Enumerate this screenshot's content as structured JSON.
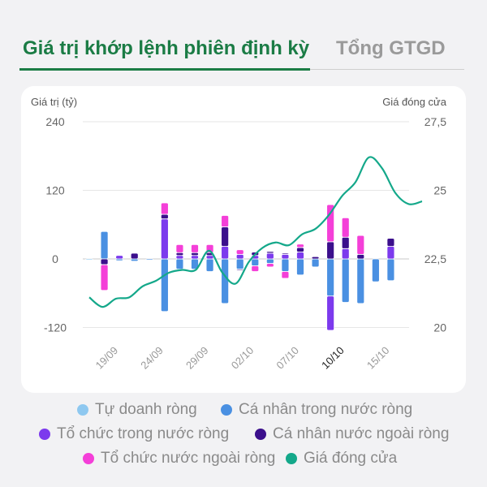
{
  "tabs": {
    "active_label": "Giá trị khớp lệnh phiên định kỳ",
    "inactive_label": "Tổng GTGD"
  },
  "chart_data": {
    "type": "bar",
    "y_left_label": "Giá trị (tỷ)",
    "y_right_label": "Giá đóng cửa",
    "y_left_ticks": [
      "240",
      "120",
      "0",
      "-120"
    ],
    "y_right_ticks": [
      "27,5",
      "25",
      "22,5",
      "20"
    ],
    "ylim_left": [
      -120,
      240
    ],
    "ylim_right": [
      20,
      27.5
    ],
    "x_tick_labels": [
      "19/09",
      "24/09",
      "29/09",
      "02/10",
      "07/10",
      "10/10",
      "15/10"
    ],
    "x_tick_highlight": "10/10",
    "stacked": true,
    "grid": true,
    "legend_position": "bottom",
    "bar_count": 22,
    "bar_tick_indices": [
      1,
      4,
      7,
      10,
      13,
      16,
      19
    ],
    "series": [
      {
        "name": "Tự doanh ròng",
        "color": "#8ec8f0",
        "values": [
          -2,
          0,
          0,
          0,
          0,
          0,
          0,
          0,
          0,
          0,
          0,
          0,
          0,
          0,
          0,
          0,
          0,
          0,
          0,
          0,
          0,
          0
        ]
      },
      {
        "name": "Cá nhân trong nước ròng",
        "color": "#4a90e2",
        "values": [
          0,
          48,
          -3,
          -4,
          -2,
          -92,
          -18,
          -18,
          -22,
          -78,
          -18,
          -12,
          -8,
          -22,
          -28,
          -14,
          -65,
          -76,
          -78,
          -40,
          -38,
          0
        ]
      },
      {
        "name": "Tổ chức trong nước ròng",
        "color": "#7c3aed",
        "values": [
          0,
          0,
          6,
          0,
          0,
          70,
          6,
          6,
          6,
          22,
          8,
          6,
          10,
          8,
          12,
          0,
          -60,
          18,
          0,
          0,
          22,
          0
        ]
      },
      {
        "name": "Cá nhân nước ngoài ròng",
        "color": "#3b0f8c",
        "values": [
          0,
          -10,
          0,
          10,
          0,
          8,
          5,
          5,
          5,
          34,
          -2,
          6,
          3,
          2,
          8,
          4,
          30,
          20,
          8,
          0,
          14,
          0
        ]
      },
      {
        "name": "Tổ chức nước ngoài ròng",
        "color": "#f43fd8",
        "values": [
          0,
          -45,
          0,
          0,
          0,
          20,
          14,
          14,
          14,
          20,
          8,
          -10,
          -6,
          -12,
          6,
          0,
          65,
          34,
          33,
          0,
          0,
          0
        ]
      },
      {
        "name": "Giá đóng cửa",
        "color": "#14a88a",
        "type": "line",
        "values": [
          21.1,
          20.75,
          21.05,
          21.1,
          21.5,
          21.7,
          22.0,
          22.1,
          22.1,
          22.8,
          22.0,
          21.6,
          22.4,
          22.9,
          23.1,
          23.0,
          23.4,
          23.6,
          24.1,
          24.8,
          25.3,
          26.2,
          25.8,
          24.9,
          24.5,
          24.6
        ]
      }
    ]
  },
  "legend": [
    {
      "label": "Tự doanh ròng",
      "color": "#8ec8f0"
    },
    {
      "label": "Cá nhân trong nước ròng",
      "color": "#4a90e2"
    },
    {
      "label": "Tổ chức trong nước ròng",
      "color": "#7c3aed"
    },
    {
      "label": "Cá nhân nước ngoài ròng",
      "color": "#3b0f8c"
    },
    {
      "label": "Tổ chức nước ngoài ròng",
      "color": "#f43fd8"
    },
    {
      "label": "Giá đóng cửa",
      "color": "#14a88a"
    }
  ]
}
